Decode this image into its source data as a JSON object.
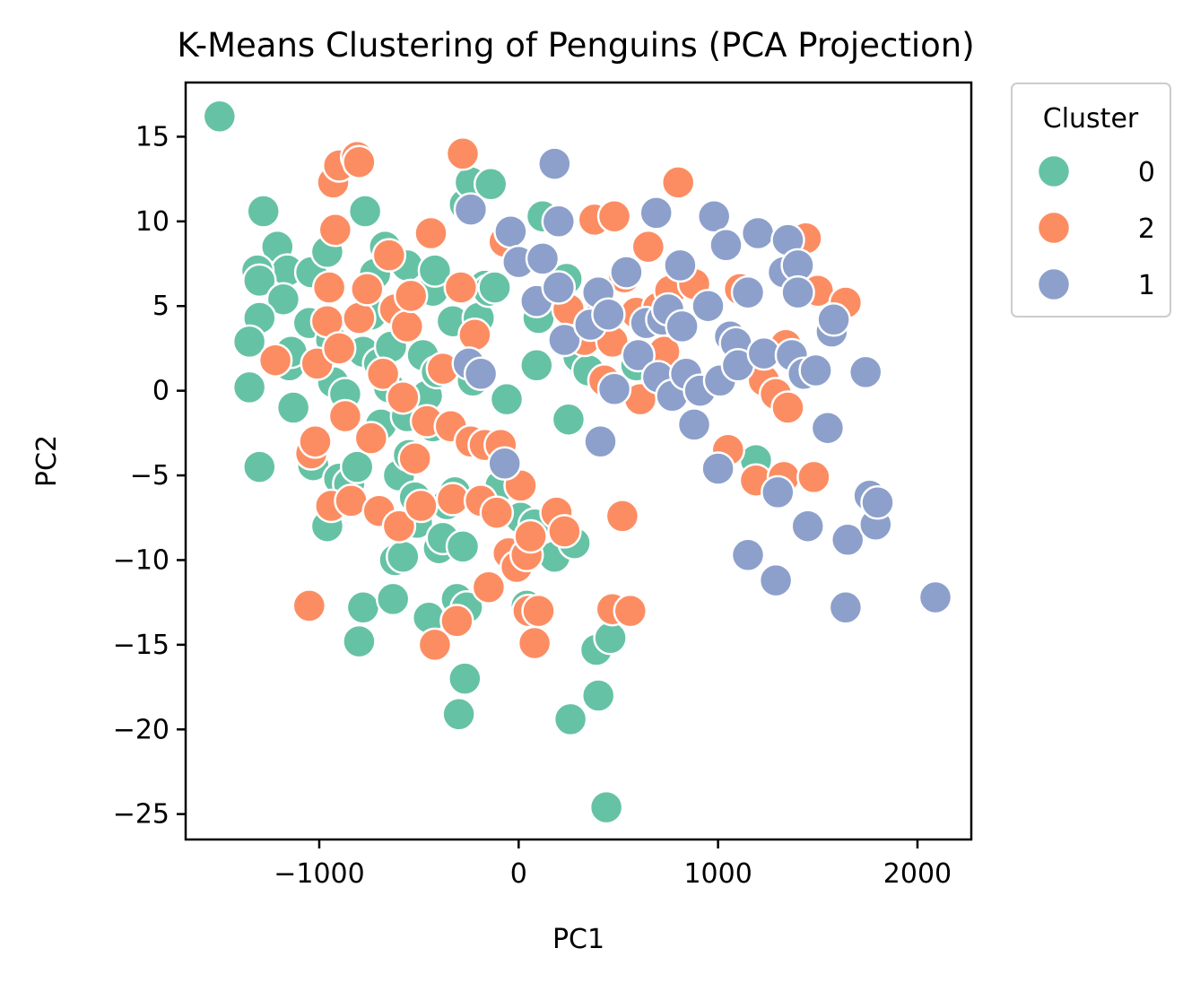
{
  "chart_data": {
    "type": "scatter",
    "title": "K-Means Clustering of Penguins (PCA Projection)",
    "xlabel": "PC1",
    "ylabel": "PC2",
    "xlim": [
      -1670,
      2270
    ],
    "ylim": [
      -26.5,
      18.2
    ],
    "xticks": [
      -1000,
      0,
      1000,
      2000
    ],
    "yticks": [
      -25,
      -20,
      -15,
      -10,
      -5,
      0,
      5,
      10,
      15
    ],
    "xtick_labels": [
      "−1000",
      "0",
      "1000",
      "2000"
    ],
    "ytick_labels": [
      "−25",
      "−20",
      "−15",
      "−10",
      "−5",
      "0",
      "5",
      "10",
      "15"
    ],
    "grid": false,
    "legend": {
      "title": "Cluster",
      "placement": "outside-right-top",
      "entries": [
        "0",
        "2",
        "1"
      ]
    },
    "series": [
      {
        "name": "0",
        "color": "#66c2a5",
        "points": [
          [
            -1500,
            16.2
          ],
          [
            -1280,
            10.6
          ],
          [
            -1210,
            8.5
          ],
          [
            -1160,
            7.1
          ],
          [
            -1310,
            7.1
          ],
          [
            -1300,
            6.5
          ],
          [
            -1180,
            5.4
          ],
          [
            -1300,
            4.3
          ],
          [
            -1350,
            2.9
          ],
          [
            -1350,
            0.2
          ],
          [
            -1300,
            -4.5
          ],
          [
            -1150,
            1.5
          ],
          [
            -1140,
            2.3
          ],
          [
            -1130,
            -1.0
          ],
          [
            -1050,
            4.0
          ],
          [
            -1040,
            7.0
          ],
          [
            -960,
            8.2
          ],
          [
            -940,
            3.0
          ],
          [
            -930,
            0.5
          ],
          [
            -1030,
            -4.4
          ],
          [
            -960,
            -8.0
          ],
          [
            -900,
            -5.2
          ],
          [
            -870,
            -0.2
          ],
          [
            -850,
            -5.5
          ],
          [
            -810,
            -4.5
          ],
          [
            -780,
            2.3
          ],
          [
            -770,
            10.6
          ],
          [
            -780,
            -12.8
          ],
          [
            -800,
            -14.8
          ],
          [
            -740,
            4.5
          ],
          [
            -720,
            6.9
          ],
          [
            -700,
            1.6
          ],
          [
            -690,
            -2.0
          ],
          [
            -670,
            8.5
          ],
          [
            -650,
            0.2
          ],
          [
            -640,
            2.6
          ],
          [
            -620,
            -10.0
          ],
          [
            -630,
            -12.3
          ],
          [
            -600,
            -5.0
          ],
          [
            -580,
            -9.8
          ],
          [
            -560,
            -1.5
          ],
          [
            -560,
            7.4
          ],
          [
            -550,
            -3.8
          ],
          [
            -520,
            -6.3
          ],
          [
            -510,
            -7.8
          ],
          [
            -480,
            2.1
          ],
          [
            -460,
            -0.3
          ],
          [
            -450,
            -13.4
          ],
          [
            -430,
            -2.1
          ],
          [
            -430,
            5.9
          ],
          [
            -420,
            7.1
          ],
          [
            -410,
            1.1
          ],
          [
            -400,
            -9.3
          ],
          [
            -380,
            -8.7
          ],
          [
            -360,
            -6.7
          ],
          [
            -330,
            4.1
          ],
          [
            -320,
            -6.0
          ],
          [
            -310,
            -12.3
          ],
          [
            -300,
            -19.1
          ],
          [
            -280,
            -9.2
          ],
          [
            -270,
            -17.0
          ],
          [
            -260,
            -12.8
          ],
          [
            -270,
            11.0
          ],
          [
            -240,
            12.3
          ],
          [
            -230,
            0.6
          ],
          [
            -200,
            4.3
          ],
          [
            -170,
            6.2
          ],
          [
            -150,
            5.9
          ],
          [
            -140,
            12.2
          ],
          [
            -120,
            6.1
          ],
          [
            -90,
            -5.6
          ],
          [
            -60,
            -0.5
          ],
          [
            10,
            -7.5
          ],
          [
            40,
            -12.7
          ],
          [
            80,
            -7.9
          ],
          [
            90,
            1.5
          ],
          [
            100,
            4.3
          ],
          [
            120,
            10.3
          ],
          [
            180,
            -9.8
          ],
          [
            240,
            6.6
          ],
          [
            250,
            -1.7
          ],
          [
            260,
            -19.4
          ],
          [
            280,
            -9.0
          ],
          [
            300,
            2.0
          ],
          [
            350,
            1.2
          ],
          [
            390,
            -15.3
          ],
          [
            400,
            -18.0
          ],
          [
            460,
            -14.6
          ],
          [
            440,
            -24.6
          ],
          [
            590,
            1.5
          ],
          [
            1190,
            -4.1
          ]
        ]
      },
      {
        "name": "2",
        "color": "#fc8d62",
        "points": [
          [
            -1220,
            1.8
          ],
          [
            -1050,
            -12.7
          ],
          [
            -1040,
            -3.7
          ],
          [
            -1020,
            -3.0
          ],
          [
            -1010,
            1.6
          ],
          [
            -950,
            6.1
          ],
          [
            -960,
            4.1
          ],
          [
            -940,
            -6.8
          ],
          [
            -930,
            12.3
          ],
          [
            -920,
            9.5
          ],
          [
            -900,
            13.3
          ],
          [
            -900,
            2.5
          ],
          [
            -870,
            -1.5
          ],
          [
            -840,
            -6.5
          ],
          [
            -810,
            13.8
          ],
          [
            -800,
            13.5
          ],
          [
            -800,
            4.3
          ],
          [
            -760,
            6.0
          ],
          [
            -740,
            -2.8
          ],
          [
            -700,
            -7.1
          ],
          [
            -680,
            1.0
          ],
          [
            -650,
            8.0
          ],
          [
            -620,
            4.8
          ],
          [
            -600,
            -8.0
          ],
          [
            -580,
            -0.4
          ],
          [
            -560,
            3.8
          ],
          [
            -540,
            5.6
          ],
          [
            -520,
            -4.0
          ],
          [
            -490,
            -6.8
          ],
          [
            -460,
            -1.8
          ],
          [
            -440,
            9.3
          ],
          [
            -420,
            -15.0
          ],
          [
            -380,
            1.3
          ],
          [
            -340,
            -2.1
          ],
          [
            -330,
            -6.4
          ],
          [
            -310,
            -13.6
          ],
          [
            -290,
            6.1
          ],
          [
            -280,
            14.0
          ],
          [
            -240,
            -3.0
          ],
          [
            -220,
            3.3
          ],
          [
            -190,
            -6.5
          ],
          [
            -170,
            -3.2
          ],
          [
            -150,
            -11.6
          ],
          [
            -110,
            -7.2
          ],
          [
            -90,
            -3.2
          ],
          [
            -70,
            8.8
          ],
          [
            -50,
            -9.6
          ],
          [
            -10,
            -10.4
          ],
          [
            10,
            -5.6
          ],
          [
            40,
            -9.7
          ],
          [
            50,
            -13.0
          ],
          [
            60,
            -8.6
          ],
          [
            80,
            -14.9
          ],
          [
            100,
            -13.0
          ],
          [
            190,
            -7.2
          ],
          [
            230,
            -8.3
          ],
          [
            250,
            4.8
          ],
          [
            330,
            3.0
          ],
          [
            380,
            10.1
          ],
          [
            400,
            4.3
          ],
          [
            430,
            0.6
          ],
          [
            470,
            2.9
          ],
          [
            470,
            -12.9
          ],
          [
            480,
            10.3
          ],
          [
            520,
            -7.4
          ],
          [
            530,
            6.7
          ],
          [
            560,
            -13.0
          ],
          [
            590,
            4.6
          ],
          [
            610,
            -0.5
          ],
          [
            650,
            8.5
          ],
          [
            680,
            2.0
          ],
          [
            700,
            4.9
          ],
          [
            730,
            2.3
          ],
          [
            760,
            5.9
          ],
          [
            800,
            12.3
          ],
          [
            880,
            6.3
          ],
          [
            1050,
            -3.5
          ],
          [
            1110,
            6.0
          ],
          [
            1190,
            -5.3
          ],
          [
            1230,
            0.6
          ],
          [
            1290,
            -0.2
          ],
          [
            1330,
            -5.1
          ],
          [
            1340,
            2.7
          ],
          [
            1350,
            -1.0
          ],
          [
            1440,
            9.0
          ],
          [
            1500,
            5.9
          ],
          [
            1480,
            -5.1
          ],
          [
            1640,
            5.2
          ]
        ]
      },
      {
        "name": "1",
        "color": "#8da0cb",
        "points": [
          [
            -240,
            10.7
          ],
          [
            -250,
            1.6
          ],
          [
            -190,
            1.0
          ],
          [
            -70,
            -4.3
          ],
          [
            -40,
            9.4
          ],
          [
            0,
            7.6
          ],
          [
            90,
            5.3
          ],
          [
            120,
            7.8
          ],
          [
            180,
            13.4
          ],
          [
            200,
            10.0
          ],
          [
            200,
            6.1
          ],
          [
            230,
            3.0
          ],
          [
            360,
            3.9
          ],
          [
            400,
            5.8
          ],
          [
            410,
            -3.0
          ],
          [
            450,
            4.5
          ],
          [
            480,
            0.1
          ],
          [
            540,
            7.0
          ],
          [
            600,
            2.1
          ],
          [
            640,
            4.0
          ],
          [
            690,
            10.5
          ],
          [
            700,
            0.8
          ],
          [
            720,
            4.2
          ],
          [
            750,
            4.8
          ],
          [
            770,
            -0.3
          ],
          [
            810,
            7.4
          ],
          [
            820,
            3.8
          ],
          [
            840,
            1.0
          ],
          [
            880,
            -2.0
          ],
          [
            910,
            0.0
          ],
          [
            950,
            5.0
          ],
          [
            980,
            10.3
          ],
          [
            1000,
            -4.6
          ],
          [
            1010,
            0.6
          ],
          [
            1040,
            8.6
          ],
          [
            1060,
            3.2
          ],
          [
            1090,
            2.8
          ],
          [
            1100,
            1.5
          ],
          [
            1150,
            -9.7
          ],
          [
            1150,
            5.8
          ],
          [
            1200,
            9.3
          ],
          [
            1230,
            2.2
          ],
          [
            1290,
            -11.2
          ],
          [
            1300,
            -6.0
          ],
          [
            1330,
            7.0
          ],
          [
            1350,
            8.9
          ],
          [
            1370,
            2.1
          ],
          [
            1400,
            7.4
          ],
          [
            1400,
            5.8
          ],
          [
            1430,
            1.0
          ],
          [
            1450,
            -8.0
          ],
          [
            1490,
            1.2
          ],
          [
            1550,
            -2.2
          ],
          [
            1570,
            3.5
          ],
          [
            1580,
            4.2
          ],
          [
            1640,
            -12.8
          ],
          [
            1650,
            -8.8
          ],
          [
            1740,
            1.1
          ],
          [
            1760,
            -6.2
          ],
          [
            1790,
            -7.9
          ],
          [
            1800,
            -6.6
          ],
          [
            2090,
            -12.2
          ]
        ]
      }
    ]
  }
}
